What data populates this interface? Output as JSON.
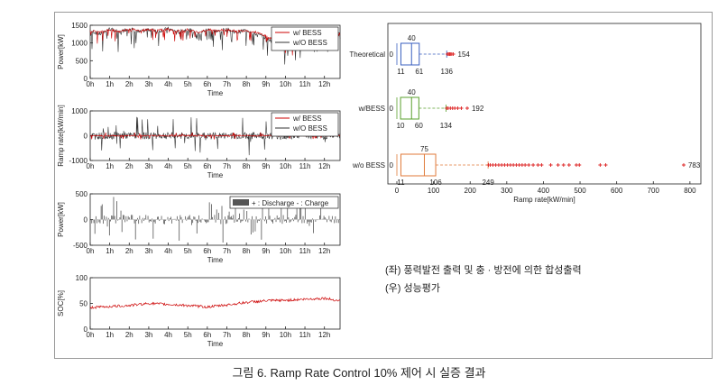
{
  "figure": {
    "caption": "그림 6. Ramp Rate Control 10% 제어 시 실증 결과",
    "notes": [
      "(좌) 풍력발전 출력 및 충 · 방전에 의한 합성출력",
      "(우) 성능평가"
    ]
  },
  "chart_data": [
    {
      "type": "line",
      "ylabel": "Power[kW]",
      "xlabel": "Time",
      "ylim": [
        0,
        1500
      ],
      "yticks": [
        "0",
        "500",
        "1000",
        "1500"
      ],
      "xticks": [
        "0h",
        "1h",
        "2h",
        "3h",
        "4h",
        "5h",
        "6h",
        "7h",
        "8h",
        "9h",
        "10h",
        "11h",
        "12h"
      ],
      "xlim": [
        0,
        12.8
      ],
      "legend": "top-right",
      "series": [
        {
          "name": "w/ BESS",
          "color": "#cc0000",
          "x": [
            0,
            0.5,
            1,
            1.5,
            2,
            2.5,
            3,
            3.5,
            4,
            4.5,
            5,
            5.5,
            6,
            6.5,
            7,
            7.5,
            8,
            8.5,
            9,
            9.5,
            10,
            10.5,
            11,
            11.5,
            12,
            12.5,
            12.8
          ],
          "values": [
            1350,
            1300,
            1380,
            1320,
            1400,
            1350,
            1380,
            1360,
            1390,
            1340,
            1380,
            1300,
            1370,
            1350,
            1380,
            1330,
            1360,
            1300,
            1200,
            1050,
            850,
            1000,
            1150,
            1250,
            1300,
            1250,
            1250
          ]
        },
        {
          "name": "w/O BESS",
          "color": "#333333",
          "x": [
            0,
            0.5,
            1,
            1.5,
            2,
            2.5,
            3,
            3.5,
            4,
            4.5,
            5,
            5.5,
            6,
            6.5,
            7,
            7.5,
            8,
            8.5,
            9,
            9.5,
            10,
            10.5,
            11,
            11.5,
            12,
            12.5,
            12.8
          ],
          "values": [
            1350,
            1250,
            1400,
            1300,
            1420,
            1300,
            1380,
            1340,
            1400,
            1300,
            1390,
            1250,
            1380,
            1320,
            1390,
            1300,
            1370,
            1250,
            1150,
            1000,
            800,
            950,
            1150,
            1250,
            1280,
            1260,
            1240
          ]
        }
      ]
    },
    {
      "type": "line",
      "ylabel": "Ramp rate[kW/min]",
      "xlabel": "Time",
      "ylim": [
        -1000,
        1000
      ],
      "yticks": [
        "-1000",
        "0",
        "1000"
      ],
      "xticks": [
        "0h",
        "1h",
        "2h",
        "3h",
        "4h",
        "5h",
        "6h",
        "7h",
        "8h",
        "9h",
        "10h",
        "11h",
        "12h"
      ],
      "xlim": [
        0,
        12.8
      ],
      "legend": "top-right",
      "series": [
        {
          "name": "w/ BESS",
          "color": "#cc0000",
          "range": [
            -150,
            150
          ]
        },
        {
          "name": "w/O BESS",
          "color": "#333333",
          "range": [
            -800,
            800
          ]
        }
      ]
    },
    {
      "type": "bar",
      "ylabel": "Power[kW]",
      "xlabel": "Time",
      "ylim": [
        -500,
        500
      ],
      "yticks": [
        "-500",
        "0",
        "500"
      ],
      "xticks": [
        "0h",
        "1h",
        "2h",
        "3h",
        "4h",
        "5h",
        "6h",
        "7h",
        "8h",
        "9h",
        "10h",
        "11h",
        "12h"
      ],
      "xlim": [
        0,
        12.8
      ],
      "legend": "top-right",
      "legend_text": "+ : Discharge  - : Charge",
      "series": [
        {
          "color": "#555555",
          "range": [
            -450,
            450
          ]
        }
      ]
    },
    {
      "type": "line",
      "ylabel": "SOC[%]",
      "xlabel": "Time",
      "ylim": [
        0,
        100
      ],
      "yticks": [
        "0",
        "50",
        "100"
      ],
      "xticks": [
        "0h",
        "1h",
        "2h",
        "3h",
        "4h",
        "5h",
        "6h",
        "7h",
        "8h",
        "9h",
        "10h",
        "11h",
        "12h"
      ],
      "xlim": [
        0,
        12.8
      ],
      "series": [
        {
          "color": "#cc0000",
          "x": [
            0,
            1,
            2,
            3,
            4,
            5,
            6,
            7,
            8,
            9,
            10,
            11,
            12,
            12.8
          ],
          "values": [
            42,
            44,
            46,
            50,
            48,
            46,
            43,
            47,
            52,
            55,
            56,
            58,
            60,
            55
          ]
        }
      ]
    },
    {
      "type": "boxplot",
      "xlabel": "Ramp rate[kW/min]",
      "xlim": [
        0,
        820
      ],
      "xticks": [
        "0",
        "100",
        "200",
        "300",
        "400",
        "500",
        "600",
        "700",
        "800"
      ],
      "grid": false,
      "groups": [
        {
          "name": "Theoretical",
          "color": "#3a5fbf",
          "min": 0,
          "q1": 11,
          "median": 40,
          "q3": 61,
          "whisker_high": 136,
          "outlier_max": 154,
          "outliers": [
            138,
            141,
            144,
            147,
            150,
            154
          ],
          "labels": {
            "min": "0",
            "q1": "11",
            "median": "40",
            "q3": "61",
            "whisker": "136",
            "max": "154"
          }
        },
        {
          "name": "w/BESS",
          "color": "#5aa02c",
          "min": 0,
          "q1": 10,
          "median": 40,
          "q3": 60,
          "whisker_high": 134,
          "outlier_max": 192,
          "outliers": [
            136,
            140,
            146,
            152,
            158,
            166,
            176,
            192
          ],
          "labels": {
            "min": "0",
            "q1": "10",
            "median": "40",
            "q3": "60",
            "whisker": "134",
            "max": "192"
          }
        },
        {
          "name": "w/o BESS",
          "color": "#e07a3a",
          "min": 0,
          "q1": 11,
          "median": 75,
          "q3": 106,
          "whisker_high": 249,
          "outlier_max": 783,
          "outliers": [
            250,
            255,
            262,
            270,
            278,
            286,
            294,
            302,
            310,
            318,
            326,
            334,
            342,
            350,
            360,
            372,
            385,
            395,
            420,
            440,
            455,
            470,
            490,
            498,
            555,
            570,
            783
          ],
          "labels": {
            "min": "0",
            "q1": "11",
            "median": "75",
            "q3": "106",
            "whisker": "249",
            "max": "783"
          }
        }
      ]
    }
  ]
}
